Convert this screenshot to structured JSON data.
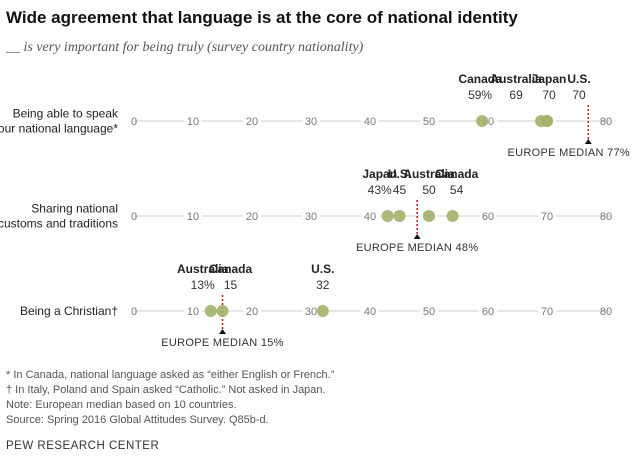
{
  "title": "Wide agreement that language is at the core of national identity",
  "subtitle": "__ is very important for being truly (survey country nationality)",
  "colors": {
    "dot": "#a3b16a",
    "axis": "#cfcfcf",
    "median": "#c0272d",
    "tick": "#777777"
  },
  "chart_data": {
    "type": "scatter",
    "xlim": [
      0,
      80
    ],
    "xticks": [
      0,
      10,
      20,
      30,
      40,
      50,
      60,
      70,
      80
    ],
    "rows": [
      {
        "label_lines": [
          "Being able to speak",
          "our national language*"
        ],
        "points": [
          {
            "name": "Canada",
            "value": 59,
            "value_label": "59%"
          },
          {
            "name": "Australia",
            "value": 69,
            "value_label": "69"
          },
          {
            "name": "Japan",
            "value": 70,
            "value_label": "70"
          },
          {
            "name": "U.S.",
            "value": 70,
            "value_label": "70"
          }
        ],
        "median": {
          "value": 77,
          "label": "EUROPE MEDIAN 77%"
        }
      },
      {
        "label_lines": [
          "Sharing national",
          "customs and traditions"
        ],
        "points": [
          {
            "name": "Japan",
            "value": 43,
            "value_label": "43%"
          },
          {
            "name": "U.S.",
            "value": 45,
            "value_label": "45"
          },
          {
            "name": "Australia",
            "value": 50,
            "value_label": "50"
          },
          {
            "name": "Canada",
            "value": 54,
            "value_label": "54"
          }
        ],
        "median": {
          "value": 48,
          "label": "EUROPE MEDIAN 48%"
        }
      },
      {
        "label_lines": [
          "Being a Christian†"
        ],
        "points": [
          {
            "name": "Australia",
            "value": 13,
            "value_label": "13%"
          },
          {
            "name": "Canada",
            "value": 15,
            "value_label": "15"
          },
          {
            "name": "U.S.",
            "value": 32,
            "value_label": "32"
          }
        ],
        "median": {
          "value": 15,
          "label": "EUROPE MEDIAN 15%"
        }
      }
    ]
  },
  "notes": [
    "* In Canada, national language asked as “either English or French.”",
    "† In Italy, Poland and Spain asked “Catholic.” Not asked in Japan.",
    "Note: European median based on 10 countries.",
    "Source: Spring 2016 Global Attitudes Survey. Q85b-d."
  ],
  "source_org": "PEW RESEARCH CENTER"
}
